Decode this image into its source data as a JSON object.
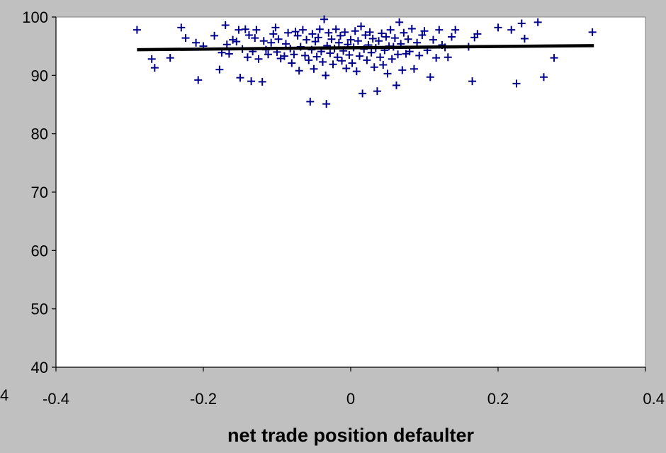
{
  "chart_data": {
    "type": "scatter",
    "title": "",
    "xlabel": "net trade position defaulter",
    "ylabel": "",
    "xlim": [
      -0.4,
      0.4
    ],
    "ylim": [
      40,
      100
    ],
    "x_ticks": [
      "-0.4",
      "-0.2",
      "0",
      "0.2",
      "0.4"
    ],
    "y_ticks": [
      "40",
      "50",
      "60",
      "70",
      "80",
      "90",
      "100"
    ],
    "stray_label": "4",
    "grid": false,
    "legend": "none",
    "colors": {
      "background": "#c0c0c0",
      "plot_area": "#ffffff",
      "marker": "#00008b",
      "trend_line": "#000000"
    },
    "marker_style": "plus",
    "trend_line": {
      "x": [
        -0.29,
        0.33
      ],
      "y": [
        94.4,
        95.1
      ]
    },
    "series": [
      {
        "points": [
          [
            -0.29,
            97.8
          ],
          [
            -0.27,
            92.8
          ],
          [
            -0.266,
            91.3
          ],
          [
            -0.245,
            93.0
          ],
          [
            -0.23,
            98.2
          ],
          [
            -0.224,
            96.4
          ],
          [
            -0.21,
            95.6
          ],
          [
            -0.207,
            89.2
          ],
          [
            -0.2,
            95.0
          ],
          [
            -0.185,
            96.8
          ],
          [
            -0.178,
            91.0
          ],
          [
            -0.175,
            93.9
          ],
          [
            -0.17,
            98.6
          ],
          [
            -0.168,
            95.3
          ],
          [
            -0.165,
            93.7
          ],
          [
            -0.16,
            96.1
          ],
          [
            -0.155,
            95.8
          ],
          [
            -0.152,
            97.8
          ],
          [
            -0.15,
            89.6
          ],
          [
            -0.147,
            94.5
          ],
          [
            -0.143,
            97.9
          ],
          [
            -0.14,
            93.1
          ],
          [
            -0.138,
            96.9
          ],
          [
            -0.135,
            89.0
          ],
          [
            -0.133,
            94.1
          ],
          [
            -0.13,
            96.4
          ],
          [
            -0.128,
            97.8
          ],
          [
            -0.125,
            92.8
          ],
          [
            -0.12,
            88.9
          ],
          [
            -0.118,
            95.9
          ],
          [
            -0.115,
            94.4
          ],
          [
            -0.112,
            93.6
          ],
          [
            -0.108,
            95.6
          ],
          [
            -0.105,
            97.1
          ],
          [
            -0.102,
            98.2
          ],
          [
            -0.1,
            94.0
          ],
          [
            -0.098,
            96.2
          ],
          [
            -0.095,
            92.9
          ],
          [
            -0.09,
            93.3
          ],
          [
            -0.088,
            95.4
          ],
          [
            -0.085,
            97.3
          ],
          [
            -0.082,
            94.6
          ],
          [
            -0.08,
            92.1
          ],
          [
            -0.077,
            93.6
          ],
          [
            -0.075,
            97.5
          ],
          [
            -0.072,
            96.8
          ],
          [
            -0.07,
            90.8
          ],
          [
            -0.068,
            94.9
          ],
          [
            -0.065,
            97.8
          ],
          [
            -0.062,
            93.4
          ],
          [
            -0.06,
            96.1
          ],
          [
            -0.057,
            92.6
          ],
          [
            -0.055,
            85.5
          ],
          [
            -0.053,
            94.4
          ],
          [
            -0.052,
            97.1
          ],
          [
            -0.05,
            91.1
          ],
          [
            -0.048,
            95.8
          ],
          [
            -0.046,
            93.2
          ],
          [
            -0.044,
            96.5
          ],
          [
            -0.042,
            97.9
          ],
          [
            -0.04,
            94.1
          ],
          [
            -0.038,
            92.3
          ],
          [
            -0.036,
            99.6
          ],
          [
            -0.034,
            90.0
          ],
          [
            -0.033,
            85.1
          ],
          [
            -0.032,
            95.1
          ],
          [
            -0.03,
            97.3
          ],
          [
            -0.028,
            93.8
          ],
          [
            -0.026,
            96.2
          ],
          [
            -0.024,
            91.9
          ],
          [
            -0.022,
            94.6
          ],
          [
            -0.02,
            97.9
          ],
          [
            -0.018,
            93.1
          ],
          [
            -0.016,
            95.6
          ],
          [
            -0.014,
            96.8
          ],
          [
            -0.012,
            92.5
          ],
          [
            -0.01,
            94.2
          ],
          [
            -0.008,
            97.4
          ],
          [
            -0.006,
            91.2
          ],
          [
            -0.004,
            95.3
          ],
          [
            -0.002,
            93.5
          ],
          [
            0.0,
            96.1
          ],
          [
            0.002,
            92.1
          ],
          [
            0.004,
            94.8
          ],
          [
            0.006,
            97.6
          ],
          [
            0.008,
            90.7
          ],
          [
            0.01,
            95.9
          ],
          [
            0.012,
            93.3
          ],
          [
            0.014,
            98.4
          ],
          [
            0.016,
            86.9
          ],
          [
            0.018,
            94.5
          ],
          [
            0.02,
            96.9
          ],
          [
            0.022,
            92.6
          ],
          [
            0.024,
            95.2
          ],
          [
            0.026,
            97.4
          ],
          [
            0.028,
            93.9
          ],
          [
            0.03,
            96.3
          ],
          [
            0.032,
            91.4
          ],
          [
            0.034,
            94.7
          ],
          [
            0.036,
            87.3
          ],
          [
            0.038,
            95.9
          ],
          [
            0.04,
            93.1
          ],
          [
            0.042,
            97.2
          ],
          [
            0.044,
            91.8
          ],
          [
            0.046,
            94.3
          ],
          [
            0.048,
            96.6
          ],
          [
            0.05,
            90.3
          ],
          [
            0.052,
            95.0
          ],
          [
            0.054,
            97.8
          ],
          [
            0.056,
            92.8
          ],
          [
            0.058,
            94.9
          ],
          [
            0.06,
            96.4
          ],
          [
            0.062,
            88.3
          ],
          [
            0.064,
            93.6
          ],
          [
            0.066,
            99.1
          ],
          [
            0.068,
            95.4
          ],
          [
            0.07,
            90.9
          ],
          [
            0.072,
            97.3
          ],
          [
            0.075,
            93.7
          ],
          [
            0.078,
            96.2
          ],
          [
            0.08,
            94.1
          ],
          [
            0.083,
            98.0
          ],
          [
            0.086,
            91.1
          ],
          [
            0.09,
            95.6
          ],
          [
            0.093,
            93.4
          ],
          [
            0.097,
            96.9
          ],
          [
            0.1,
            97.6
          ],
          [
            0.104,
            94.3
          ],
          [
            0.108,
            89.7
          ],
          [
            0.112,
            96.1
          ],
          [
            0.116,
            93.0
          ],
          [
            0.12,
            97.8
          ],
          [
            0.124,
            95.2
          ],
          [
            0.128,
            94.8
          ],
          [
            0.132,
            93.1
          ],
          [
            0.137,
            96.6
          ],
          [
            0.142,
            97.8
          ],
          [
            0.16,
            94.9
          ],
          [
            0.165,
            89.0
          ],
          [
            0.168,
            96.5
          ],
          [
            0.172,
            97.1
          ],
          [
            0.2,
            98.2
          ],
          [
            0.218,
            97.8
          ],
          [
            0.225,
            88.6
          ],
          [
            0.232,
            98.9
          ],
          [
            0.236,
            96.3
          ],
          [
            0.254,
            99.1
          ],
          [
            0.262,
            89.7
          ],
          [
            0.276,
            93.0
          ],
          [
            0.328,
            97.4
          ]
        ]
      }
    ]
  }
}
